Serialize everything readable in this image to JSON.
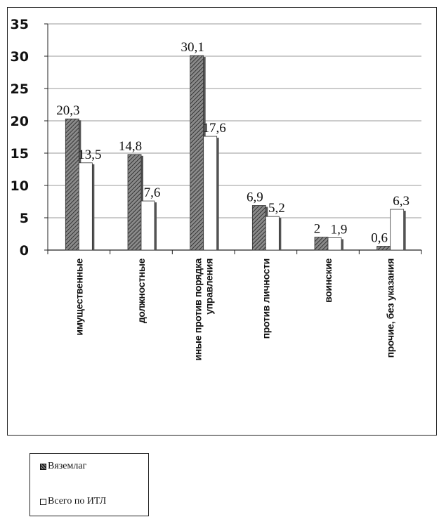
{
  "chart_data": {
    "type": "bar",
    "title": "",
    "xlabel": "",
    "ylabel": "",
    "ylim": [
      0,
      35
    ],
    "yticks": [
      "0",
      "5",
      "10",
      "15",
      "20",
      "25",
      "30",
      "35"
    ],
    "grid": true,
    "legend_position": "bottom-left",
    "categories": [
      [
        "имущественные"
      ],
      [
        "должностные"
      ],
      [
        "иные против порядка",
        "управления"
      ],
      [
        "против личности"
      ],
      [
        "воинские"
      ],
      [
        "прочие, без указания"
      ]
    ],
    "series": [
      {
        "name": "Вяземлаг",
        "values": [
          20.3,
          14.8,
          30.1,
          6.9,
          2,
          0.6
        ],
        "labels": [
          "20,3",
          "14,8",
          "30,1",
          "6,9",
          "2",
          "0,6"
        ],
        "fill": "hatched-gray",
        "color": "#7a7a7a"
      },
      {
        "name": "Всего по ИТЛ",
        "values": [
          13.5,
          7.6,
          17.6,
          5.2,
          1.9,
          6.3
        ],
        "labels": [
          "13,5",
          "7,6",
          "17,6",
          "5,2",
          "1,9",
          "6,3"
        ],
        "fill": "white",
        "color": "#ffffff"
      }
    ]
  },
  "legend": {
    "items": [
      {
        "label": "Вяземлаг"
      },
      {
        "label": "Всего по ИТЛ"
      }
    ]
  }
}
